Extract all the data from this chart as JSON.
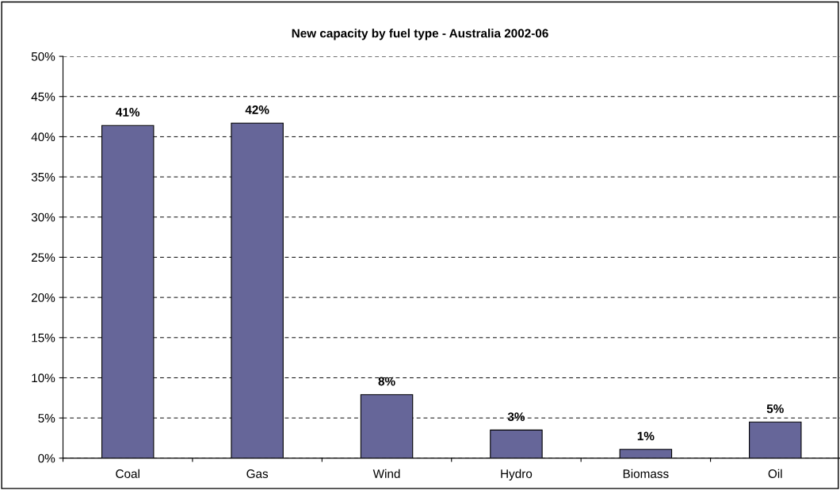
{
  "chart_data": {
    "type": "bar",
    "title": "New capacity by fuel type - Australia 2002-06",
    "categories": [
      "Coal",
      "Gas",
      "Wind",
      "Hydro",
      "Biomass",
      "Oil"
    ],
    "values": [
      41.4,
      41.7,
      7.9,
      3.5,
      1.1,
      4.5
    ],
    "value_labels": [
      "41%",
      "42%",
      "8%",
      "3%",
      "1%",
      "5%"
    ],
    "color": "#666699",
    "ylim": [
      0,
      50
    ],
    "yticks": [
      {
        "value": 0,
        "label": "0%"
      },
      {
        "value": 5,
        "label": "5%"
      },
      {
        "value": 10,
        "label": "10%"
      },
      {
        "value": 15,
        "label": "15%"
      },
      {
        "value": 20,
        "label": "20%"
      },
      {
        "value": 25,
        "label": "25%"
      },
      {
        "value": 30,
        "label": "30%"
      },
      {
        "value": 35,
        "label": "35%"
      },
      {
        "value": 40,
        "label": "40%"
      },
      {
        "value": 45,
        "label": "45%"
      },
      {
        "value": 50,
        "label": "50%"
      }
    ],
    "grid": "y",
    "line_style": "dashed"
  }
}
